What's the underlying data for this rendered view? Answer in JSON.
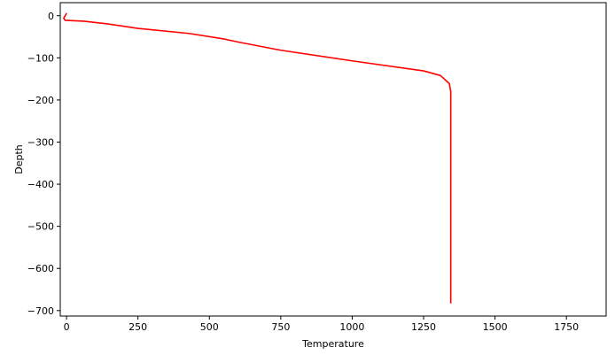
{
  "chart_data": {
    "type": "line",
    "x_label": "Temperature",
    "y_label": "Depth",
    "x": [
      0,
      -3,
      -10,
      -5,
      60,
      140,
      250,
      428,
      550,
      605,
      750,
      1008,
      1250,
      1309,
      1340,
      1345,
      1345
    ],
    "series": [
      {
        "color": "#ff0000",
        "values": [
          6,
          2,
          -6,
          -11,
          -13,
          -19,
          -30,
          -42,
          -55,
          -63,
          -82,
          -108,
          -131,
          -142,
          -161,
          -180,
          -683
        ]
      }
    ],
    "xlim": [
      -22,
      1889
    ],
    "ylim": [
      -713,
      31
    ],
    "xticks": [
      0,
      250,
      500,
      750,
      1000,
      1250,
      1500,
      1750
    ],
    "yticks": [
      0,
      {
        "value": -100,
        "label": "−100"
      },
      {
        "value": -200,
        "label": "−200"
      },
      {
        "value": -300,
        "label": "−300"
      },
      {
        "value": -400,
        "label": "−400"
      },
      {
        "value": -500,
        "label": "−500"
      },
      {
        "value": -600,
        "label": "−600"
      },
      {
        "value": -700,
        "label": "−700"
      }
    ]
  }
}
